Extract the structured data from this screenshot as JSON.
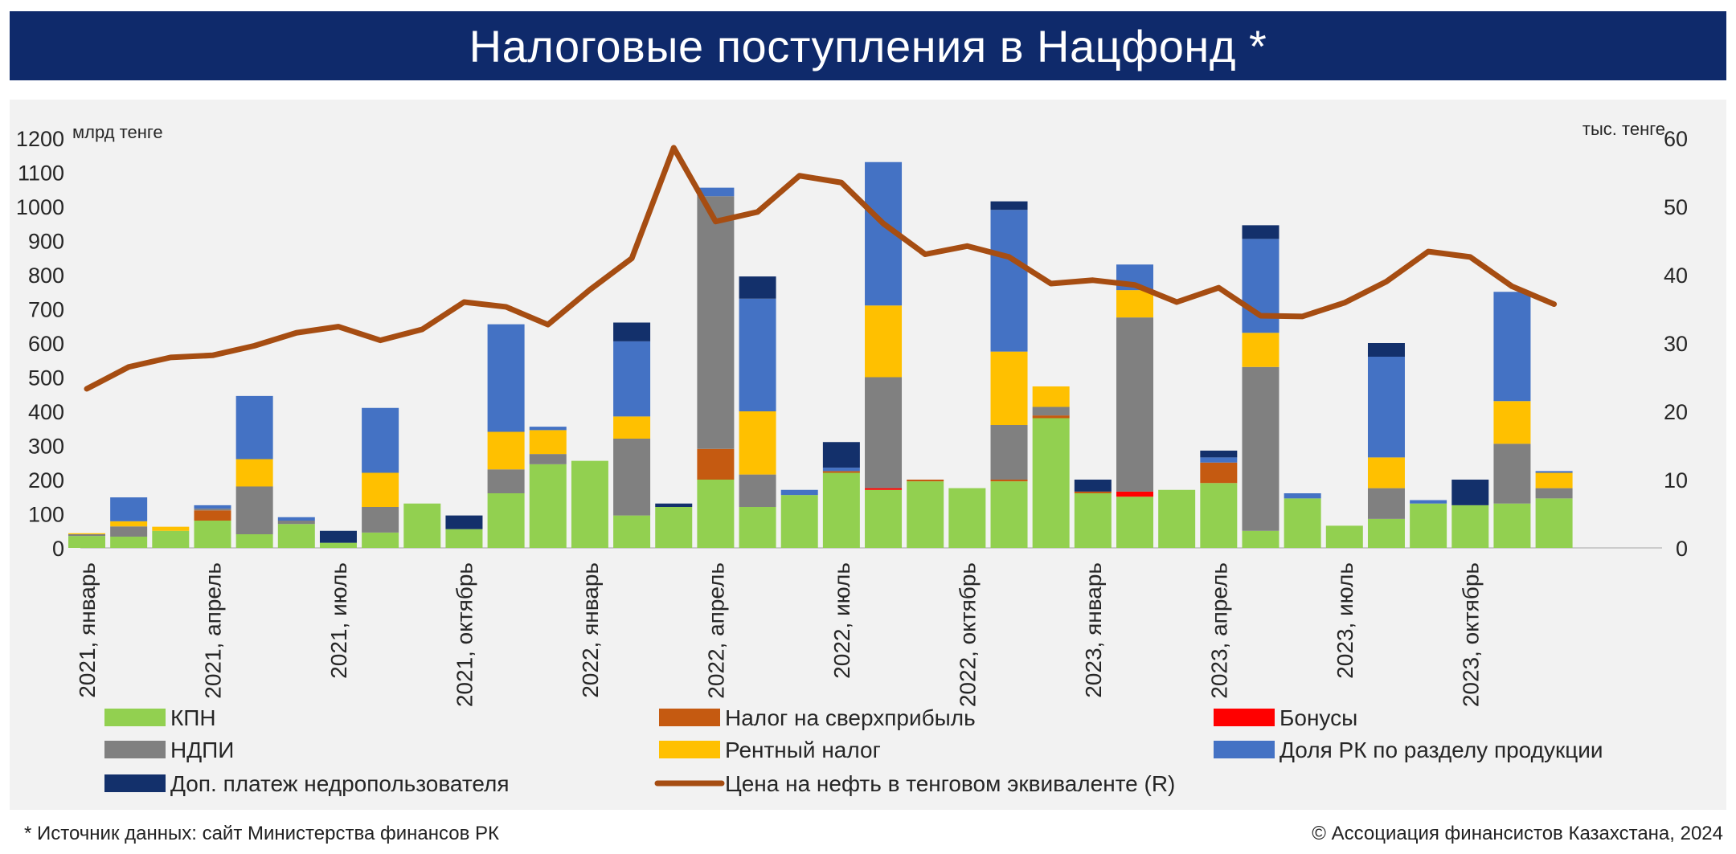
{
  "title": "Налоговые поступления в Нацфонд *",
  "footnote": "* Источник данных: сайт Министерства финансов РК",
  "copyright": "© Ассоциация финансистов Казахстана, 2024",
  "chart_data": {
    "type": "bar",
    "stacked": true,
    "left_axis": {
      "unit": "млрд тенге",
      "ylim": [
        0,
        1200
      ],
      "ticks": [
        0,
        100,
        200,
        300,
        400,
        500,
        600,
        700,
        800,
        900,
        1000,
        1100,
        1200
      ]
    },
    "right_axis": {
      "unit": "тыс. тенге",
      "ylim": [
        0,
        60
      ],
      "ticks": [
        0,
        10,
        20,
        30,
        40,
        50,
        60
      ]
    },
    "x_labels": [
      {
        "i": 0,
        "label": "2021, январь"
      },
      {
        "i": 3,
        "label": "2021, апрель"
      },
      {
        "i": 6,
        "label": "2021, июль"
      },
      {
        "i": 9,
        "label": "2021, октябрь"
      },
      {
        "i": 12,
        "label": "2022, январь"
      },
      {
        "i": 15,
        "label": "2022, апрель"
      },
      {
        "i": 18,
        "label": "2022, июль"
      },
      {
        "i": 21,
        "label": "2022, октябрь"
      },
      {
        "i": 24,
        "label": "2023, январь"
      },
      {
        "i": 27,
        "label": "2023, апрель"
      },
      {
        "i": 30,
        "label": "2023, июль"
      },
      {
        "i": 33,
        "label": "2023, октябрь"
      }
    ],
    "n_periods": 36,
    "series": [
      {
        "name": "КПН",
        "color": "#92d050",
        "values": [
          35,
          33,
          50,
          80,
          40,
          70,
          15,
          45,
          130,
          55,
          160,
          245,
          255,
          95,
          120,
          200,
          120,
          155,
          220,
          170,
          195,
          175,
          195,
          380,
          160,
          150,
          170,
          190,
          50,
          145,
          65,
          85,
          130,
          125,
          130,
          145
        ]
      },
      {
        "name": "Налог на сверхприбыль",
        "color": "#c55a11",
        "values": [
          0,
          0,
          0,
          30,
          0,
          0,
          0,
          0,
          0,
          0,
          0,
          0,
          0,
          0,
          0,
          90,
          0,
          0,
          5,
          0,
          5,
          0,
          5,
          8,
          5,
          0,
          0,
          60,
          0,
          0,
          0,
          0,
          0,
          0,
          0,
          0
        ]
      },
      {
        "name": "Бонусы",
        "color": "#ff0000",
        "values": [
          0,
          0,
          0,
          0,
          0,
          0,
          0,
          0,
          0,
          0,
          0,
          0,
          0,
          0,
          0,
          0,
          0,
          0,
          0,
          5,
          0,
          0,
          0,
          0,
          0,
          15,
          0,
          0,
          0,
          0,
          0,
          0,
          0,
          0,
          0,
          0
        ]
      },
      {
        "name": "НДПИ",
        "color": "#808080",
        "values": [
          5,
          30,
          0,
          5,
          140,
          10,
          0,
          75,
          0,
          0,
          70,
          30,
          0,
          225,
          0,
          740,
          95,
          0,
          0,
          325,
          0,
          0,
          160,
          25,
          0,
          510,
          0,
          0,
          480,
          0,
          0,
          90,
          0,
          0,
          175,
          30
        ]
      },
      {
        "name": "Рентный налог",
        "color": "#ffc000",
        "values": [
          3,
          15,
          12,
          0,
          80,
          0,
          0,
          100,
          0,
          0,
          110,
          70,
          0,
          65,
          0,
          0,
          185,
          0,
          0,
          210,
          0,
          0,
          215,
          60,
          0,
          80,
          0,
          0,
          100,
          0,
          0,
          90,
          0,
          0,
          125,
          45
        ]
      },
      {
        "name": "Доля РК по разделу продукции",
        "color": "#4472c4",
        "values": [
          0,
          70,
          0,
          10,
          185,
          10,
          0,
          190,
          0,
          0,
          315,
          10,
          0,
          220,
          0,
          25,
          330,
          15,
          10,
          420,
          0,
          0,
          415,
          0,
          0,
          75,
          0,
          15,
          275,
          15,
          0,
          295,
          10,
          0,
          320,
          5
        ]
      },
      {
        "name": "Доп. платеж недропользователя",
        "color": "#13306b",
        "values": [
          0,
          0,
          0,
          0,
          0,
          0,
          35,
          0,
          0,
          40,
          0,
          0,
          0,
          55,
          10,
          0,
          65,
          0,
          75,
          0,
          0,
          0,
          25,
          0,
          35,
          0,
          0,
          20,
          40,
          0,
          0,
          40,
          0,
          75,
          0,
          0
        ]
      },
      {
        "name": "Цена на нефть в тенговом эквиваленте (R)",
        "type": "line",
        "axis": "right",
        "color": "#a64d12",
        "values": [
          23.3,
          26.5,
          27.9,
          28.2,
          29.6,
          31.5,
          32.4,
          30.4,
          32.0,
          36.0,
          35.3,
          32.7,
          37.8,
          42.4,
          58.6,
          47.8,
          49.2,
          54.5,
          53.5,
          47.5,
          43.0,
          44.2,
          42.6,
          38.7,
          39.2,
          38.5,
          36.0,
          38.1,
          34.0,
          33.9,
          35.9,
          39.0,
          43.4,
          42.6,
          38.3,
          35.7
        ]
      }
    ],
    "legend": "bottom"
  }
}
